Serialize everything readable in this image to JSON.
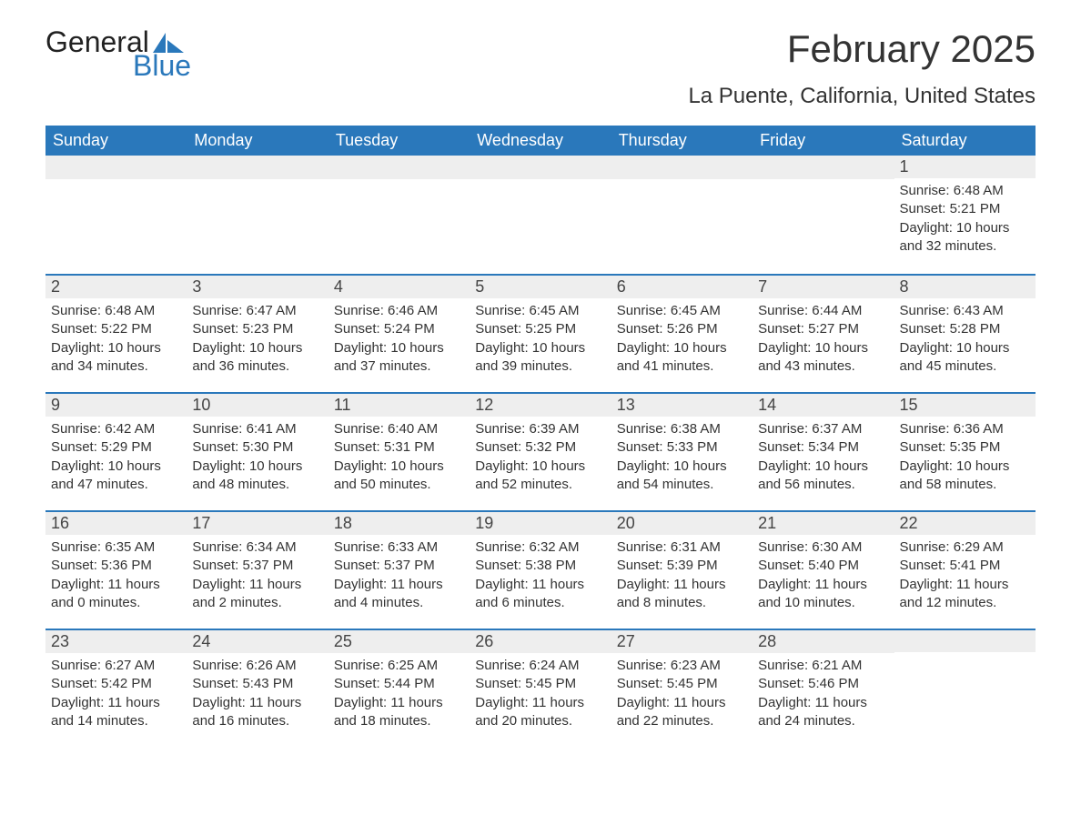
{
  "logo": {
    "text_top": "General",
    "text_bottom": "Blue",
    "accent_color": "#2a78bb",
    "text_color": "#222222"
  },
  "title": "February 2025",
  "location": "La Puente, California, United States",
  "colors": {
    "header_bg": "#2a78bb",
    "header_text": "#ffffff",
    "daynum_bg": "#eeeeee",
    "row_divider": "#2a78bb",
    "body_bg": "#ffffff",
    "text": "#333333"
  },
  "day_labels": [
    "Sunday",
    "Monday",
    "Tuesday",
    "Wednesday",
    "Thursday",
    "Friday",
    "Saturday"
  ],
  "weeks": [
    [
      null,
      null,
      null,
      null,
      null,
      null,
      {
        "n": "1",
        "sunrise": "Sunrise: 6:48 AM",
        "sunset": "Sunset: 5:21 PM",
        "daylight": "Daylight: 10 hours and 32 minutes."
      }
    ],
    [
      {
        "n": "2",
        "sunrise": "Sunrise: 6:48 AM",
        "sunset": "Sunset: 5:22 PM",
        "daylight": "Daylight: 10 hours and 34 minutes."
      },
      {
        "n": "3",
        "sunrise": "Sunrise: 6:47 AM",
        "sunset": "Sunset: 5:23 PM",
        "daylight": "Daylight: 10 hours and 36 minutes."
      },
      {
        "n": "4",
        "sunrise": "Sunrise: 6:46 AM",
        "sunset": "Sunset: 5:24 PM",
        "daylight": "Daylight: 10 hours and 37 minutes."
      },
      {
        "n": "5",
        "sunrise": "Sunrise: 6:45 AM",
        "sunset": "Sunset: 5:25 PM",
        "daylight": "Daylight: 10 hours and 39 minutes."
      },
      {
        "n": "6",
        "sunrise": "Sunrise: 6:45 AM",
        "sunset": "Sunset: 5:26 PM",
        "daylight": "Daylight: 10 hours and 41 minutes."
      },
      {
        "n": "7",
        "sunrise": "Sunrise: 6:44 AM",
        "sunset": "Sunset: 5:27 PM",
        "daylight": "Daylight: 10 hours and 43 minutes."
      },
      {
        "n": "8",
        "sunrise": "Sunrise: 6:43 AM",
        "sunset": "Sunset: 5:28 PM",
        "daylight": "Daylight: 10 hours and 45 minutes."
      }
    ],
    [
      {
        "n": "9",
        "sunrise": "Sunrise: 6:42 AM",
        "sunset": "Sunset: 5:29 PM",
        "daylight": "Daylight: 10 hours and 47 minutes."
      },
      {
        "n": "10",
        "sunrise": "Sunrise: 6:41 AM",
        "sunset": "Sunset: 5:30 PM",
        "daylight": "Daylight: 10 hours and 48 minutes."
      },
      {
        "n": "11",
        "sunrise": "Sunrise: 6:40 AM",
        "sunset": "Sunset: 5:31 PM",
        "daylight": "Daylight: 10 hours and 50 minutes."
      },
      {
        "n": "12",
        "sunrise": "Sunrise: 6:39 AM",
        "sunset": "Sunset: 5:32 PM",
        "daylight": "Daylight: 10 hours and 52 minutes."
      },
      {
        "n": "13",
        "sunrise": "Sunrise: 6:38 AM",
        "sunset": "Sunset: 5:33 PM",
        "daylight": "Daylight: 10 hours and 54 minutes."
      },
      {
        "n": "14",
        "sunrise": "Sunrise: 6:37 AM",
        "sunset": "Sunset: 5:34 PM",
        "daylight": "Daylight: 10 hours and 56 minutes."
      },
      {
        "n": "15",
        "sunrise": "Sunrise: 6:36 AM",
        "sunset": "Sunset: 5:35 PM",
        "daylight": "Daylight: 10 hours and 58 minutes."
      }
    ],
    [
      {
        "n": "16",
        "sunrise": "Sunrise: 6:35 AM",
        "sunset": "Sunset: 5:36 PM",
        "daylight": "Daylight: 11 hours and 0 minutes."
      },
      {
        "n": "17",
        "sunrise": "Sunrise: 6:34 AM",
        "sunset": "Sunset: 5:37 PM",
        "daylight": "Daylight: 11 hours and 2 minutes."
      },
      {
        "n": "18",
        "sunrise": "Sunrise: 6:33 AM",
        "sunset": "Sunset: 5:37 PM",
        "daylight": "Daylight: 11 hours and 4 minutes."
      },
      {
        "n": "19",
        "sunrise": "Sunrise: 6:32 AM",
        "sunset": "Sunset: 5:38 PM",
        "daylight": "Daylight: 11 hours and 6 minutes."
      },
      {
        "n": "20",
        "sunrise": "Sunrise: 6:31 AM",
        "sunset": "Sunset: 5:39 PM",
        "daylight": "Daylight: 11 hours and 8 minutes."
      },
      {
        "n": "21",
        "sunrise": "Sunrise: 6:30 AM",
        "sunset": "Sunset: 5:40 PM",
        "daylight": "Daylight: 11 hours and 10 minutes."
      },
      {
        "n": "22",
        "sunrise": "Sunrise: 6:29 AM",
        "sunset": "Sunset: 5:41 PM",
        "daylight": "Daylight: 11 hours and 12 minutes."
      }
    ],
    [
      {
        "n": "23",
        "sunrise": "Sunrise: 6:27 AM",
        "sunset": "Sunset: 5:42 PM",
        "daylight": "Daylight: 11 hours and 14 minutes."
      },
      {
        "n": "24",
        "sunrise": "Sunrise: 6:26 AM",
        "sunset": "Sunset: 5:43 PM",
        "daylight": "Daylight: 11 hours and 16 minutes."
      },
      {
        "n": "25",
        "sunrise": "Sunrise: 6:25 AM",
        "sunset": "Sunset: 5:44 PM",
        "daylight": "Daylight: 11 hours and 18 minutes."
      },
      {
        "n": "26",
        "sunrise": "Sunrise: 6:24 AM",
        "sunset": "Sunset: 5:45 PM",
        "daylight": "Daylight: 11 hours and 20 minutes."
      },
      {
        "n": "27",
        "sunrise": "Sunrise: 6:23 AM",
        "sunset": "Sunset: 5:45 PM",
        "daylight": "Daylight: 11 hours and 22 minutes."
      },
      {
        "n": "28",
        "sunrise": "Sunrise: 6:21 AM",
        "sunset": "Sunset: 5:46 PM",
        "daylight": "Daylight: 11 hours and 24 minutes."
      },
      null
    ]
  ]
}
